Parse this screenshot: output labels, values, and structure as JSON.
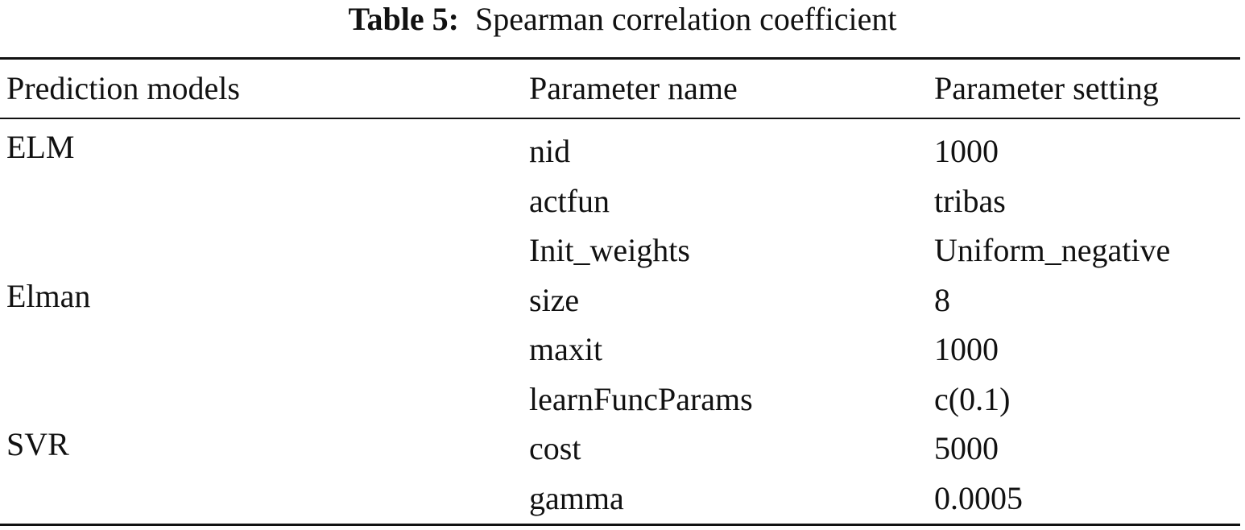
{
  "caption": {
    "label": "Table 5:",
    "text": "Spearman correlation coefficient"
  },
  "headers": [
    "Prediction models",
    "Parameter name",
    "Parameter setting"
  ],
  "rows": [
    [
      "ELM",
      "nid",
      "1000"
    ],
    [
      "",
      "actfun",
      "tribas"
    ],
    [
      "",
      "Init_weights",
      "Uniform_negative"
    ],
    [
      "Elman",
      "size",
      "8"
    ],
    [
      "",
      "maxit",
      "1000"
    ],
    [
      "",
      "learnFuncParams",
      "c(0.1)"
    ],
    [
      "SVR",
      "cost",
      "5000"
    ],
    [
      "",
      "gamma",
      "0.0005"
    ]
  ]
}
